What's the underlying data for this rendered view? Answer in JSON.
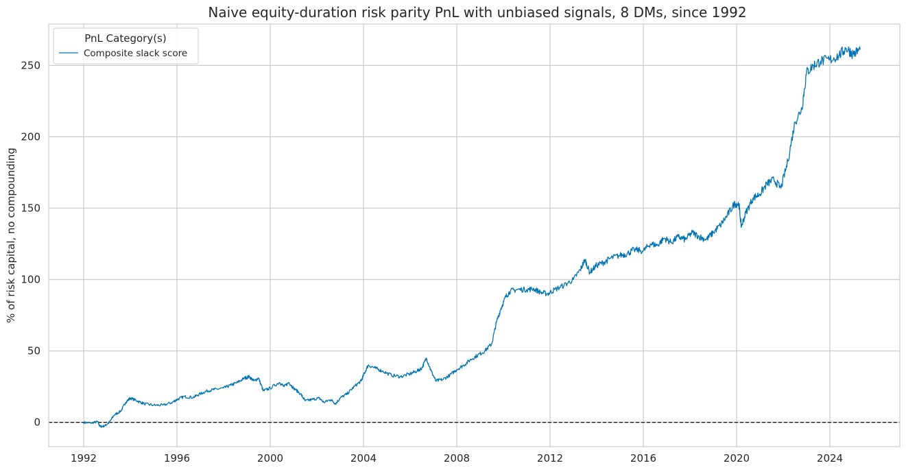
{
  "chart_data": {
    "type": "line",
    "title": "Naive equity-duration risk parity PnL with unbiased signals, 8 DMs, since 1992",
    "xlabel": "",
    "ylabel": "% of risk capital, no compounding",
    "xlim": [
      1990.5,
      2027.0
    ],
    "ylim": [
      -17,
      279
    ],
    "x_ticks": [
      1992,
      1996,
      2000,
      2004,
      2008,
      2012,
      2016,
      2020,
      2024
    ],
    "x_tick_labels": [
      "1992",
      "1996",
      "2000",
      "2004",
      "2008",
      "2012",
      "2016",
      "2020",
      "2024"
    ],
    "y_ticks": [
      0,
      50,
      100,
      150,
      200,
      250
    ],
    "y_tick_labels": [
      "0",
      "50",
      "100",
      "150",
      "200",
      "250"
    ],
    "grid": true,
    "zero_line": {
      "y": 0,
      "style": "dashed",
      "color": "#000000"
    },
    "legend": {
      "title": "PnL Category(s)",
      "position": "top-left"
    },
    "series": [
      {
        "name": "Composite slack score",
        "color": "#0173b2",
        "points": [
          [
            1992.0,
            0
          ],
          [
            1992.3,
            -0.5
          ],
          [
            1992.6,
            0.5
          ],
          [
            1992.7,
            -3
          ],
          [
            1992.9,
            -2.5
          ],
          [
            1993.1,
            0
          ],
          [
            1993.3,
            5
          ],
          [
            1993.6,
            8
          ],
          [
            1993.8,
            14
          ],
          [
            1994.0,
            17
          ],
          [
            1994.3,
            15
          ],
          [
            1994.6,
            13
          ],
          [
            1995.0,
            12
          ],
          [
            1995.4,
            12
          ],
          [
            1995.8,
            14
          ],
          [
            1996.0,
            16
          ],
          [
            1996.3,
            18
          ],
          [
            1996.7,
            17.5
          ],
          [
            1997.0,
            20
          ],
          [
            1997.3,
            22
          ],
          [
            1997.6,
            23
          ],
          [
            1998.0,
            24
          ],
          [
            1998.3,
            26
          ],
          [
            1998.6,
            28
          ],
          [
            1998.9,
            31
          ],
          [
            1999.1,
            32
          ],
          [
            1999.3,
            29
          ],
          [
            1999.5,
            31
          ],
          [
            1999.7,
            22
          ],
          [
            2000.0,
            24
          ],
          [
            2000.4,
            28
          ],
          [
            2000.6,
            25
          ],
          [
            2000.8,
            28
          ],
          [
            2001.0,
            24
          ],
          [
            2001.3,
            20
          ],
          [
            2001.5,
            15
          ],
          [
            2001.8,
            16
          ],
          [
            2002.1,
            17
          ],
          [
            2002.3,
            14
          ],
          [
            2002.6,
            16
          ],
          [
            2002.8,
            13
          ],
          [
            2003.0,
            17
          ],
          [
            2003.3,
            20
          ],
          [
            2003.6,
            25
          ],
          [
            2003.9,
            29
          ],
          [
            2004.0,
            33
          ],
          [
            2004.2,
            40
          ],
          [
            2004.5,
            38
          ],
          [
            2004.8,
            36
          ],
          [
            2005.2,
            33
          ],
          [
            2005.6,
            32
          ],
          [
            2006.0,
            34
          ],
          [
            2006.3,
            36
          ],
          [
            2006.5,
            38
          ],
          [
            2006.7,
            45
          ],
          [
            2006.9,
            36
          ],
          [
            2007.1,
            29
          ],
          [
            2007.4,
            30
          ],
          [
            2007.7,
            33
          ],
          [
            2008.0,
            37
          ],
          [
            2008.3,
            40
          ],
          [
            2008.6,
            44
          ],
          [
            2008.9,
            47
          ],
          [
            2009.2,
            50
          ],
          [
            2009.5,
            55
          ],
          [
            2009.7,
            70
          ],
          [
            2009.9,
            80
          ],
          [
            2010.1,
            88
          ],
          [
            2010.3,
            92
          ],
          [
            2010.6,
            93
          ],
          [
            2011.0,
            93
          ],
          [
            2011.3,
            93.5
          ],
          [
            2011.6,
            91
          ],
          [
            2011.9,
            90
          ],
          [
            2012.2,
            93
          ],
          [
            2012.6,
            96
          ],
          [
            2013.0,
            100
          ],
          [
            2013.3,
            107
          ],
          [
            2013.5,
            114
          ],
          [
            2013.7,
            105
          ],
          [
            2014.0,
            110
          ],
          [
            2014.3,
            112
          ],
          [
            2014.6,
            115
          ],
          [
            2015.0,
            117
          ],
          [
            2015.3,
            118
          ],
          [
            2015.6,
            121
          ],
          [
            2016.0,
            120
          ],
          [
            2016.3,
            125
          ],
          [
            2016.6,
            124
          ],
          [
            2016.9,
            129
          ],
          [
            2017.2,
            126
          ],
          [
            2017.5,
            130
          ],
          [
            2017.8,
            128
          ],
          [
            2018.1,
            133
          ],
          [
            2018.4,
            130
          ],
          [
            2018.7,
            128
          ],
          [
            2019.0,
            133
          ],
          [
            2019.3,
            138
          ],
          [
            2019.6,
            145
          ],
          [
            2019.9,
            153
          ],
          [
            2020.1,
            153
          ],
          [
            2020.2,
            137
          ],
          [
            2020.4,
            147
          ],
          [
            2020.7,
            157
          ],
          [
            2021.0,
            160
          ],
          [
            2021.3,
            167
          ],
          [
            2021.6,
            170
          ],
          [
            2021.9,
            164
          ],
          [
            2022.2,
            183
          ],
          [
            2022.5,
            210
          ],
          [
            2022.8,
            220
          ],
          [
            2023.0,
            245
          ],
          [
            2023.3,
            250
          ],
          [
            2023.6,
            253
          ],
          [
            2024.0,
            254
          ],
          [
            2024.4,
            257
          ],
          [
            2024.7,
            262
          ],
          [
            2025.0,
            258
          ],
          [
            2025.3,
            261
          ]
        ]
      }
    ]
  }
}
